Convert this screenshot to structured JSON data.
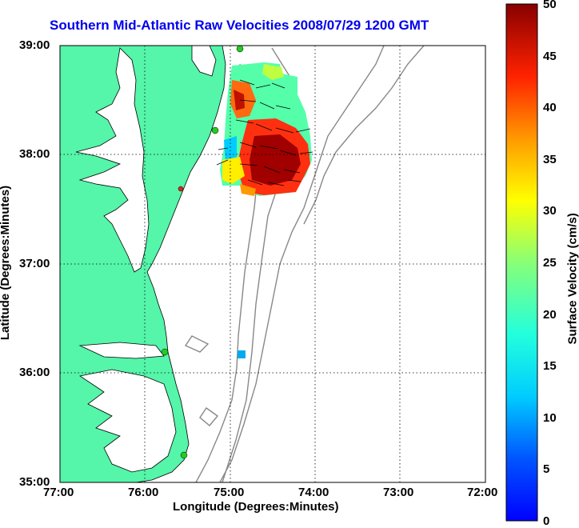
{
  "map": {
    "title": "Southern Mid-Atlantic Raw Velocities 2008/07/29 1200 GMT",
    "xlabel": "Longitude (Degrees:Minutes)",
    "ylabel": "Latitude (Degrees:Minutes)",
    "x_ticks": [
      "77:00",
      "76:00",
      "75:00",
      "74:00",
      "73:00",
      "72:00"
    ],
    "y_ticks": [
      "39:00",
      "38:00",
      "37:00",
      "36:00",
      "35:00"
    ],
    "colors": {
      "land": "#55f5aa",
      "grid": "#000000",
      "bathymetry": "#888888",
      "station_marker": "#22cc22",
      "title": "#0000ee"
    }
  },
  "colorbar": {
    "label": "Surface Velocity (cm/s)",
    "ticks": [
      "50",
      "45",
      "40",
      "35",
      "30",
      "25",
      "20",
      "15",
      "10",
      "5",
      "0"
    ],
    "min": 0,
    "max": 50,
    "colormap": "jet"
  }
}
